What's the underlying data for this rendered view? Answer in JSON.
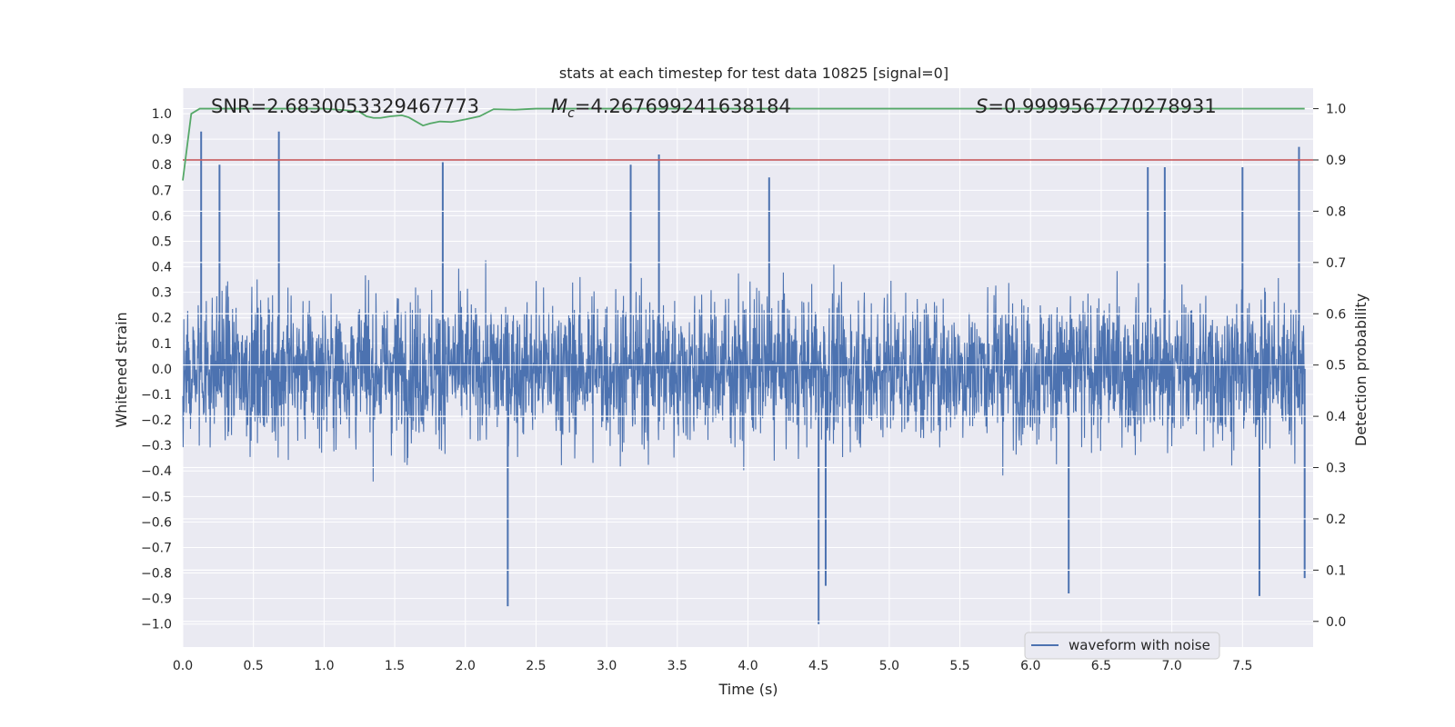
{
  "chart_data": {
    "type": "line",
    "title": "stats at each timestep for test data 10825 [signal=0]",
    "xlabel": "Time (s)",
    "ylabel": "Whitened strain",
    "y2label": "Detection probability",
    "xlim": [
      0.0,
      8.0
    ],
    "ylim": [
      -1.09,
      1.1
    ],
    "y2lim": [
      -0.05,
      1.04
    ],
    "xticks": [
      "0.0",
      "0.5",
      "1.0",
      "1.5",
      "2.0",
      "2.5",
      "3.0",
      "3.5",
      "4.0",
      "4.5",
      "5.0",
      "5.5",
      "6.0",
      "6.5",
      "7.0",
      "7.5"
    ],
    "yticks": [
      "1.0",
      "0.9",
      "0.8",
      "0.7",
      "0.6",
      "0.5",
      "0.4",
      "0.3",
      "0.2",
      "0.1",
      "0.0",
      "−0.1",
      "−0.2",
      "−0.3",
      "−0.4",
      "−0.5",
      "−0.6",
      "−0.7",
      "−0.8",
      "−0.9",
      "−1.0"
    ],
    "y2ticks": [
      "1.0",
      "0.9",
      "0.8",
      "0.7",
      "0.6",
      "0.5",
      "0.4",
      "0.3",
      "0.2",
      "0.1",
      "0.0"
    ],
    "grid": true,
    "legend_position": "lower-right",
    "annotations": {
      "snr": "SNR=2.6830053329467773",
      "mc_symbol": "M",
      "mc_subscript": "c",
      "mc_value": "=4.267699241638184",
      "s_symbol": "S",
      "s_value": "=0.9999567270278931"
    },
    "threshold": 0.9,
    "series": [
      {
        "name": "waveform with noise",
        "axis": "left",
        "color": "#4c72b0",
        "description_peaks": {
          "x": [
            0.13,
            0.26,
            0.68,
            1.84,
            2.3,
            3.17,
            3.37,
            4.15,
            4.5,
            4.55,
            6.27,
            6.83,
            6.95,
            7.5,
            7.62,
            7.9,
            7.94
          ],
          "y": [
            0.93,
            0.8,
            0.93,
            0.81,
            -0.93,
            0.8,
            0.84,
            0.75,
            -1.0,
            -0.85,
            -0.88,
            0.79,
            0.79,
            0.79,
            -0.89,
            0.87,
            -0.82
          ]
        }
      },
      {
        "name": "",
        "axis": "right",
        "color": "#55a868",
        "x": [
          0.0,
          0.06,
          0.12,
          0.2,
          0.4,
          0.6,
          0.8,
          1.0,
          1.15,
          1.25,
          1.3,
          1.35,
          1.4,
          1.47,
          1.55,
          1.6,
          1.65,
          1.7,
          1.75,
          1.82,
          1.9,
          2.0,
          2.1,
          2.2,
          2.35,
          2.5,
          2.7,
          3.0,
          3.5,
          4.0,
          5.0,
          6.0,
          7.0,
          7.94
        ],
        "y": [
          0.86,
          0.99,
          1.0,
          1.0,
          1.0,
          1.0,
          1.0,
          1.0,
          0.997,
          0.994,
          0.985,
          0.982,
          0.982,
          0.985,
          0.987,
          0.983,
          0.975,
          0.967,
          0.971,
          0.975,
          0.974,
          0.979,
          0.985,
          0.999,
          0.998,
          1.0,
          1.0,
          1.0,
          1.0,
          1.0,
          1.0,
          1.0,
          1.0,
          1.0
        ]
      },
      {
        "name": "",
        "axis": "right",
        "color": "#c44e52",
        "x": [
          0.0,
          8.0
        ],
        "y": [
          0.9,
          0.9
        ]
      }
    ]
  }
}
